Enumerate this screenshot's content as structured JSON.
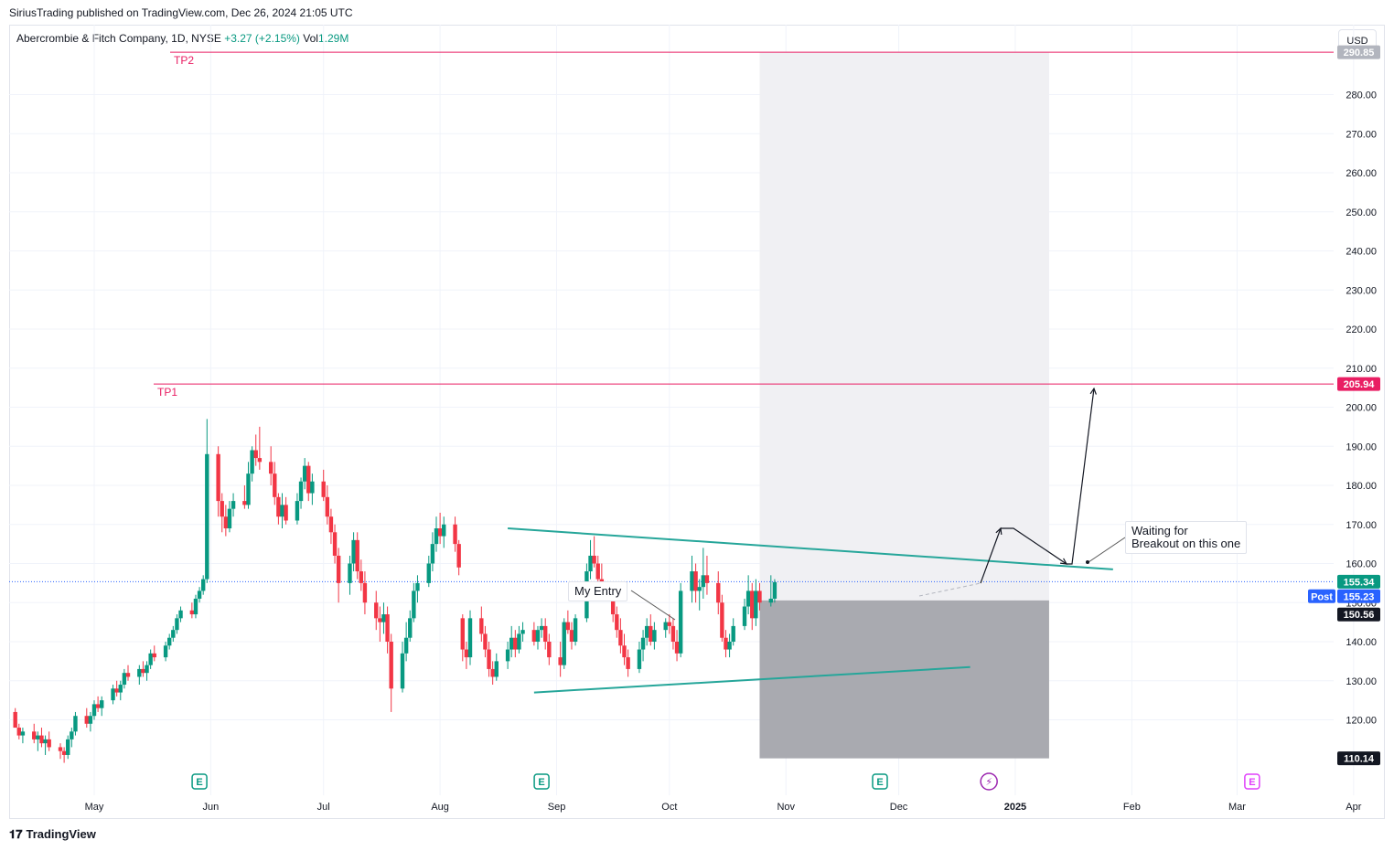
{
  "header": {
    "credit": "SiriusTrading published on TradingView.com, Dec 26, 2024 21:05 UTC",
    "symbol": "Abercrombie & Fitch Company, 1D, NYSE",
    "change": "+3.27 (+2.15%)",
    "vol_label": "Vol",
    "vol_value": "1.29M",
    "currency_button": "USD"
  },
  "footer": {
    "logo_text": "TradingView"
  },
  "colors": {
    "up": "#089981",
    "down": "#f23645",
    "target_line": "#e91e63",
    "trendline": "#26a69a",
    "zone_light": "#f0f0f3",
    "zone_dark": "#a9aab0",
    "last_price": "#089981",
    "post_price": "#2962ff",
    "zone_tag": "#131722"
  },
  "chart_data": {
    "type": "candlestick",
    "y_axis": {
      "ticks": [
        120,
        130,
        140,
        150,
        160,
        170,
        180,
        190,
        200,
        210,
        220,
        230,
        240,
        250,
        260,
        270,
        280
      ],
      "tick_labels": [
        "120.00",
        "130.00",
        "140.00",
        "150.00",
        "160.00",
        "170.00",
        "180.00",
        "190.00",
        "200.00",
        "210.00",
        "220.00",
        "230.00",
        "240.00",
        "250.00",
        "260.00",
        "270.00",
        "280.00"
      ],
      "range": [
        110.14,
        290.85
      ]
    },
    "x_axis": {
      "labels": [
        "May",
        "Jun",
        "Jul",
        "Aug",
        "Sep",
        "Oct",
        "Nov",
        "Dec",
        "2025",
        "Feb",
        "Mar",
        "Apr"
      ],
      "label_dates": [
        "2024-05-01",
        "2024-06-01",
        "2024-07-01",
        "2024-08-01",
        "2024-09-01",
        "2024-10-01",
        "2024-11-01",
        "2024-12-01",
        "2025-01-01",
        "2025-02-01",
        "2025-03-01",
        "2025-04-01"
      ],
      "range": [
        "2024-04-10",
        "2025-04-01"
      ]
    },
    "candles_ohlc": [
      [
        122,
        123,
        118,
        118
      ],
      [
        118,
        119,
        115,
        116
      ],
      [
        116,
        118,
        114,
        117
      ],
      [
        117,
        119,
        114,
        115
      ],
      [
        115,
        117,
        112,
        116
      ],
      [
        116,
        118,
        113,
        114
      ],
      [
        114,
        116,
        111,
        115
      ],
      [
        115,
        117,
        112,
        113
      ],
      [
        113,
        114,
        110,
        112
      ],
      [
        112,
        113,
        109,
        111
      ],
      [
        111,
        116,
        110,
        115
      ],
      [
        115,
        118,
        113,
        117
      ],
      [
        117,
        122,
        116,
        121
      ],
      [
        121,
        123,
        118,
        119
      ],
      [
        119,
        122,
        117,
        121
      ],
      [
        121,
        125,
        120,
        124
      ],
      [
        124,
        126,
        122,
        123
      ],
      [
        123,
        126,
        121,
        125
      ],
      [
        125,
        129,
        124,
        128
      ],
      [
        128,
        130,
        126,
        127
      ],
      [
        127,
        130,
        125,
        129
      ],
      [
        129,
        133,
        128,
        132
      ],
      [
        132,
        134,
        130,
        131
      ],
      [
        131,
        134,
        129,
        133
      ],
      [
        133,
        135,
        131,
        132
      ],
      [
        132,
        135,
        130,
        134
      ],
      [
        134,
        138,
        133,
        137
      ],
      [
        137,
        139,
        135,
        136
      ],
      [
        136,
        140,
        135,
        139
      ],
      [
        139,
        142,
        138,
        141
      ],
      [
        141,
        144,
        140,
        143
      ],
      [
        143,
        147,
        142,
        146
      ],
      [
        146,
        149,
        145,
        148
      ],
      [
        148,
        150,
        146,
        147
      ],
      [
        147,
        152,
        146,
        151
      ],
      [
        151,
        154,
        150,
        153
      ],
      [
        153,
        157,
        152,
        156
      ],
      [
        156,
        197,
        155,
        188
      ],
      [
        188,
        190,
        172,
        176
      ],
      [
        176,
        178,
        168,
        172
      ],
      [
        172,
        175,
        167,
        169
      ],
      [
        169,
        176,
        168,
        174
      ],
      [
        174,
        178,
        172,
        176
      ],
      [
        176,
        180,
        174,
        175
      ],
      [
        175,
        186,
        174,
        183
      ],
      [
        183,
        190,
        181,
        189
      ],
      [
        189,
        193,
        185,
        187
      ],
      [
        187,
        195,
        184,
        186
      ],
      [
        186,
        190,
        180,
        183
      ],
      [
        183,
        186,
        175,
        177
      ],
      [
        177,
        178,
        170,
        172
      ],
      [
        172,
        178,
        169,
        175
      ],
      [
        175,
        177,
        170,
        171
      ],
      [
        171,
        178,
        170,
        176
      ],
      [
        176,
        182,
        174,
        181
      ],
      [
        181,
        187,
        179,
        185
      ],
      [
        185,
        186,
        176,
        178
      ],
      [
        178,
        183,
        175,
        181
      ],
      [
        181,
        184,
        176,
        177
      ],
      [
        177,
        180,
        170,
        172
      ],
      [
        172,
        174,
        165,
        168
      ],
      [
        168,
        170,
        160,
        162
      ],
      [
        162,
        164,
        150,
        155
      ],
      [
        155,
        162,
        152,
        160
      ],
      [
        160,
        168,
        158,
        166
      ],
      [
        166,
        168,
        156,
        158
      ],
      [
        158,
        161,
        153,
        155
      ],
      [
        155,
        158,
        147,
        150
      ],
      [
        150,
        153,
        143,
        146
      ],
      [
        146,
        149,
        140,
        145
      ],
      [
        145,
        150,
        142,
        147
      ],
      [
        147,
        149,
        137,
        140
      ],
      [
        140,
        142,
        122,
        128
      ],
      [
        128,
        140,
        127,
        137
      ],
      [
        137,
        145,
        135,
        141
      ],
      [
        141,
        148,
        140,
        146
      ],
      [
        146,
        155,
        145,
        153
      ],
      [
        153,
        157,
        150,
        155
      ],
      [
        155,
        162,
        154,
        160
      ],
      [
        160,
        168,
        158,
        165
      ],
      [
        165,
        172,
        163,
        169
      ],
      [
        169,
        173,
        165,
        167
      ],
      [
        167,
        172,
        164,
        170
      ],
      [
        170,
        172,
        163,
        165
      ],
      [
        165,
        166,
        157,
        159
      ],
      [
        146,
        147,
        135,
        138
      ],
      [
        138,
        140,
        133,
        136
      ],
      [
        136,
        148,
        134,
        146
      ],
      [
        146,
        149,
        140,
        142
      ],
      [
        142,
        144,
        136,
        138
      ],
      [
        138,
        140,
        131,
        133
      ],
      [
        133,
        135,
        129,
        131
      ],
      [
        131,
        137,
        130,
        135
      ],
      [
        135,
        140,
        133,
        138
      ],
      [
        138,
        144,
        136,
        141
      ],
      [
        141,
        143,
        136,
        138
      ],
      [
        138,
        144,
        137,
        142
      ],
      [
        142,
        145,
        140,
        143
      ],
      [
        143,
        145,
        139,
        140
      ],
      [
        140,
        144,
        138,
        143
      ],
      [
        143,
        146,
        141,
        144
      ],
      [
        144,
        146,
        138,
        140
      ],
      [
        140,
        142,
        134,
        136
      ],
      [
        136,
        140,
        131,
        134
      ],
      [
        134,
        146,
        133,
        145
      ],
      [
        145,
        148,
        142,
        143
      ],
      [
        143,
        145,
        138,
        140
      ],
      [
        140,
        147,
        139,
        146
      ],
      [
        146,
        160,
        145,
        158
      ],
      [
        158,
        166,
        156,
        162
      ],
      [
        162,
        167,
        159,
        160
      ],
      [
        160,
        162,
        154,
        156
      ],
      [
        156,
        160,
        151,
        153
      ],
      [
        153,
        155,
        145,
        147
      ],
      [
        147,
        149,
        141,
        143
      ],
      [
        143,
        146,
        137,
        139
      ],
      [
        139,
        142,
        134,
        136
      ],
      [
        136,
        138,
        131,
        133
      ],
      [
        133,
        140,
        132,
        138
      ],
      [
        138,
        143,
        135,
        141
      ],
      [
        141,
        146,
        139,
        144
      ],
      [
        144,
        147,
        139,
        140
      ],
      [
        140,
        145,
        138,
        143
      ],
      [
        143,
        146,
        141,
        145
      ],
      [
        145,
        147,
        142,
        144
      ],
      [
        144,
        146,
        138,
        140
      ],
      [
        140,
        143,
        135,
        137
      ],
      [
        137,
        155,
        136,
        153
      ],
      [
        153,
        162,
        150,
        158
      ],
      [
        158,
        160,
        150,
        153
      ],
      [
        153,
        156,
        148,
        154
      ],
      [
        154,
        164,
        151,
        157
      ],
      [
        157,
        162,
        152,
        155
      ],
      [
        155,
        158,
        147,
        150
      ],
      [
        150,
        152,
        140,
        141
      ],
      [
        141,
        143,
        136,
        138
      ],
      [
        138,
        142,
        136,
        140
      ],
      [
        140,
        146,
        139,
        144
      ],
      [
        144,
        151,
        143,
        149
      ],
      [
        149,
        157,
        147,
        153
      ],
      [
        153,
        155,
        143,
        146
      ],
      [
        146,
        156,
        144,
        153
      ],
      [
        153,
        155,
        148,
        150
      ],
      [
        150,
        157,
        149,
        151
      ],
      [
        151,
        156,
        150,
        155.23
      ]
    ],
    "start_date": "2024-04-10",
    "annotations": {
      "tp2": {
        "label": "TP2",
        "price": 290.85,
        "tag": "290.85"
      },
      "tp1": {
        "label": "TP1",
        "price": 205.94,
        "tag": "205.94"
      },
      "entry_label": "My Entry",
      "note_text_1": "Waiting for",
      "note_text_2": "Breakout on this one",
      "price_tags": {
        "last": "155.34",
        "post_label": "Post",
        "post": "155.23",
        "entry": "150.56",
        "stop": "110.14"
      },
      "upper_trend": {
        "from": [
          "2024-08-19",
          169
        ],
        "to": [
          "2025-01-27",
          158.5
        ]
      },
      "lower_trend": {
        "from": [
          "2024-08-26",
          127
        ],
        "to": [
          "2024-12-20",
          133.5
        ]
      },
      "zone": {
        "from": "2024-10-25",
        "to": "2025-01-10",
        "top": 290.85,
        "entry": 150.56,
        "bottom": 110.14
      }
    },
    "earnings_markers": [
      "2024-05-29",
      "2024-08-28",
      "2024-11-26",
      "2025-03-05"
    ],
    "dividend_marker": "2024-12-25",
    "grid": true
  }
}
